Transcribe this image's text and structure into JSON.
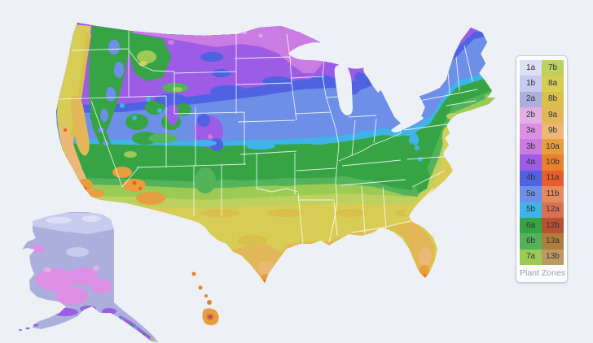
{
  "page": {
    "background": "#edf1f5"
  },
  "legend": {
    "title": "Plant Zones",
    "zones": [
      {
        "label": "1a",
        "color": "#dcdff6"
      },
      {
        "label": "1b",
        "color": "#c7cbee"
      },
      {
        "label": "2a",
        "color": "#aab0db"
      },
      {
        "label": "2b",
        "color": "#e3b0e6"
      },
      {
        "label": "3a",
        "color": "#dd8fe6"
      },
      {
        "label": "3b",
        "color": "#cb7ce2"
      },
      {
        "label": "4a",
        "color": "#9c5ce6"
      },
      {
        "label": "4b",
        "color": "#4f63e2"
      },
      {
        "label": "5a",
        "color": "#6e8fe8"
      },
      {
        "label": "5b",
        "color": "#3fb4e8"
      },
      {
        "label": "6a",
        "color": "#36a444"
      },
      {
        "label": "6b",
        "color": "#52b35a"
      },
      {
        "label": "7a",
        "color": "#9ccb55"
      },
      {
        "label": "7b",
        "color": "#bed05e"
      },
      {
        "label": "8a",
        "color": "#d7cd55"
      },
      {
        "label": "8b",
        "color": "#d9c04a"
      },
      {
        "label": "9a",
        "color": "#e2b757"
      },
      {
        "label": "9b",
        "color": "#ecb878"
      },
      {
        "label": "10a",
        "color": "#e89d3e"
      },
      {
        "label": "10b",
        "color": "#e8812a"
      },
      {
        "label": "11a",
        "color": "#e65e2d"
      },
      {
        "label": "11b",
        "color": "#e58a5a"
      },
      {
        "label": "12a",
        "color": "#d96f55"
      },
      {
        "label": "12b",
        "color": "#b65233"
      },
      {
        "label": "13a",
        "color": "#ae7e3e"
      },
      {
        "label": "13b",
        "color": "#bd9a64"
      }
    ]
  },
  "map": {
    "description": "USDA plant hardiness zones map of the United States with Alaska and Hawaii",
    "water_color": "#edf1f5",
    "state_border_color": "#ffffff"
  }
}
